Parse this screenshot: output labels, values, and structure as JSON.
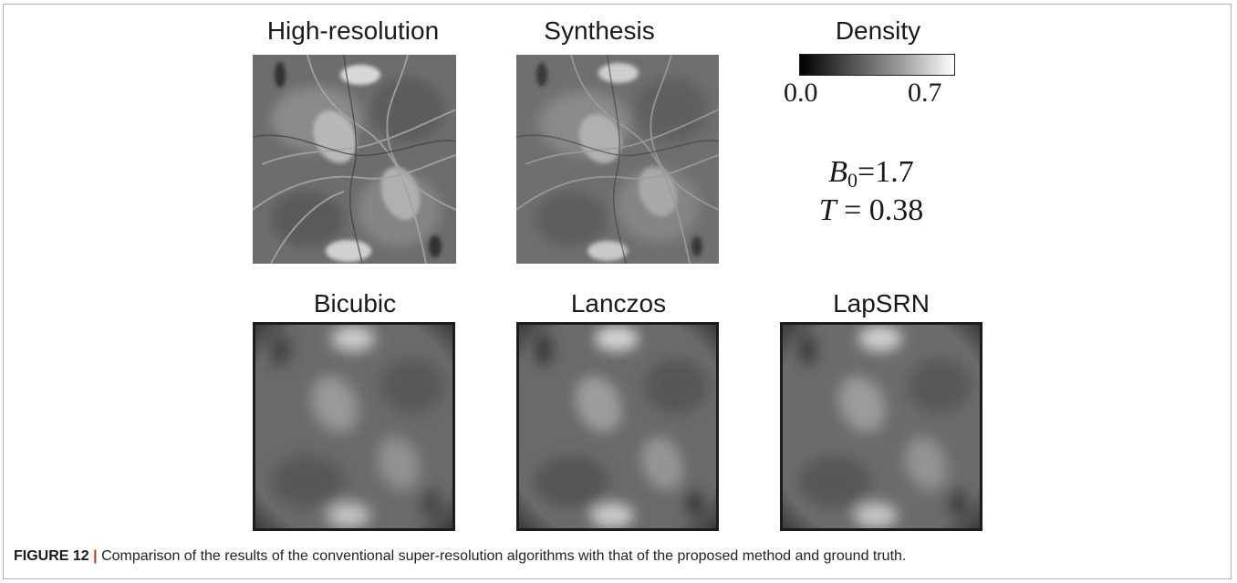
{
  "figure": {
    "panels_top": [
      {
        "title": "High-resolution"
      },
      {
        "title": "Synthesis"
      }
    ],
    "colorbar": {
      "title": "Density",
      "min_label": "0.0",
      "max_label": "0.7"
    },
    "parameters": {
      "b_symbol": "B",
      "b_subscript": "0",
      "b_value": "=1.7",
      "t_symbol": "T",
      "t_value": " = 0.38"
    },
    "panels_bottom": [
      {
        "title": "Bicubic"
      },
      {
        "title": "Lanczos"
      },
      {
        "title": "LapSRN"
      }
    ]
  },
  "caption": {
    "label": "FIGURE 12",
    "separator": "|",
    "text": "Comparison of the results of the conventional super-resolution algorithms with that of the proposed method and ground truth."
  },
  "colors": {
    "panel_base": "#6e6e6e",
    "border": "#b3b3b3"
  }
}
